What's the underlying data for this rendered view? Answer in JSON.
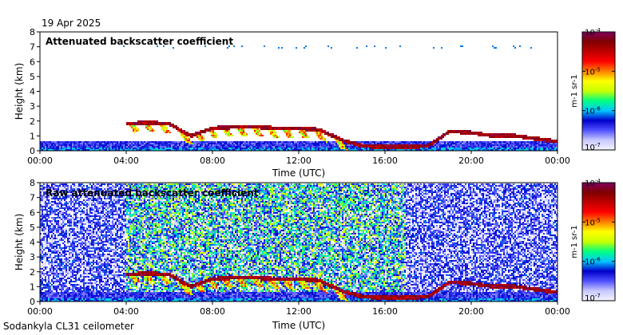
{
  "header": {
    "date": "19 Apr 2025"
  },
  "footer": {
    "site": "Sodankyla CL31 ceilometer"
  },
  "colorbar": {
    "ticks": [
      "10-7",
      "10-6",
      "10-5",
      "10-4"
    ],
    "label": "m-1 sr-1",
    "colors": [
      "#f4f4ff",
      "#c8c8ff",
      "#5050ff",
      "#0000cc",
      "#00c8ff",
      "#00ff80",
      "#c8ff00",
      "#ffff00",
      "#ff8000",
      "#ff0000",
      "#c00000",
      "#800000",
      "#800060"
    ]
  },
  "chart_data": [
    {
      "type": "heatmap",
      "title": "Attenuated backscatter coefficient",
      "xlabel": "Time (UTC)",
      "ylabel": "Height (km)",
      "x_ticks": [
        "00:00",
        "04:00",
        "08:00",
        "12:00",
        "16:00",
        "20:00",
        "00:00"
      ],
      "y_ticks": [
        0,
        1,
        2,
        3,
        4,
        5,
        6,
        7,
        8
      ],
      "xlim_hours": [
        0,
        24
      ],
      "ylim_km": [
        0,
        8
      ],
      "colorscale": "log",
      "clim": [
        "1e-7",
        "1e-4"
      ],
      "cloud_base_km": [
        {
          "hour": 4.0,
          "km": 1.8
        },
        {
          "hour": 5.0,
          "km": 1.9
        },
        {
          "hour": 6.0,
          "km": 1.8
        },
        {
          "hour": 7.0,
          "km": 1.0
        },
        {
          "hour": 8.0,
          "km": 1.5
        },
        {
          "hour": 9.0,
          "km": 1.6
        },
        {
          "hour": 10.0,
          "km": 1.6
        },
        {
          "hour": 11.0,
          "km": 1.5
        },
        {
          "hour": 12.0,
          "km": 1.5
        },
        {
          "hour": 13.0,
          "km": 1.4
        },
        {
          "hour": 14.0,
          "km": 0.7
        },
        {
          "hour": 15.0,
          "km": 0.3
        },
        {
          "hour": 16.0,
          "km": 0.25
        },
        {
          "hour": 17.0,
          "km": 0.25
        },
        {
          "hour": 18.0,
          "km": 0.3
        },
        {
          "hour": 19.0,
          "km": 1.3
        },
        {
          "hour": 20.0,
          "km": 1.2
        },
        {
          "hour": 21.0,
          "km": 1.0
        },
        {
          "hour": 22.0,
          "km": 1.0
        },
        {
          "hour": 23.0,
          "km": 0.8
        },
        {
          "hour": 24.0,
          "km": 0.6
        }
      ]
    },
    {
      "type": "heatmap",
      "title": "Raw attenuated backscatter coefficient",
      "xlabel": "Time (UTC)",
      "ylabel": "Height (km)",
      "x_ticks": [
        "00:00",
        "04:00",
        "08:00",
        "12:00",
        "16:00",
        "20:00",
        "00:00"
      ],
      "y_ticks": [
        0,
        1,
        2,
        3,
        4,
        5,
        6,
        7,
        8
      ],
      "xlim_hours": [
        0,
        24
      ],
      "ylim_km": [
        0,
        8
      ],
      "colorscale": "log",
      "clim": [
        "1e-7",
        "1e-4"
      ]
    }
  ]
}
